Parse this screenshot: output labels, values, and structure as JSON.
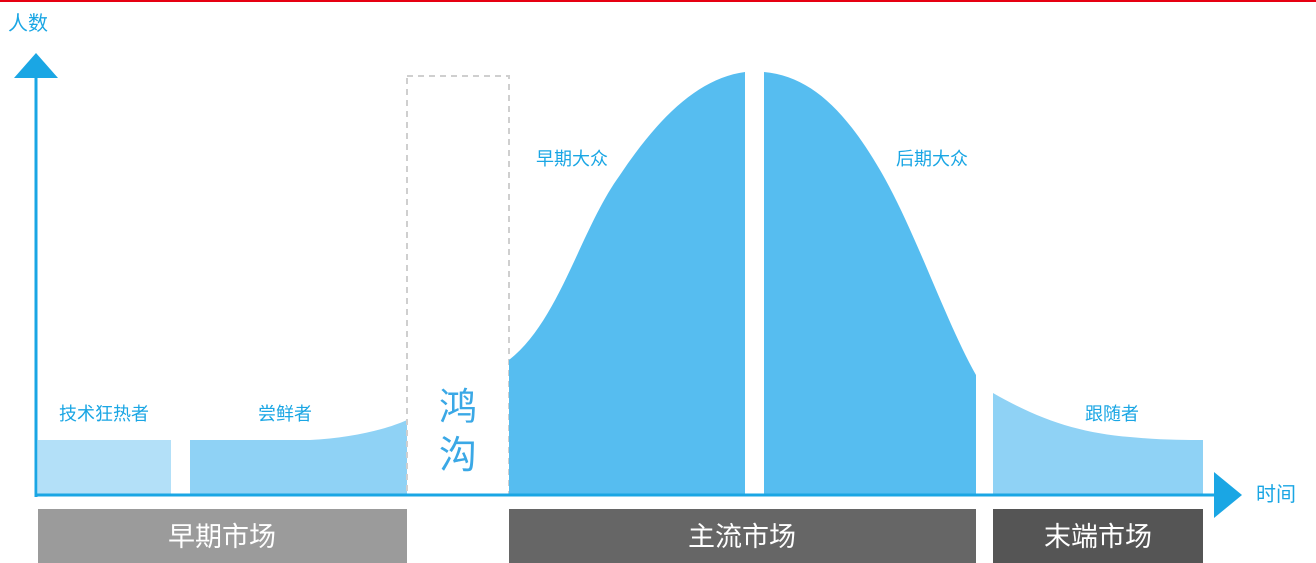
{
  "axes": {
    "y_label": "人数",
    "x_label": "时间"
  },
  "segments": {
    "innovators": "技术狂热者",
    "early_adopters": "尝鲜者",
    "chasm_line1": "鸿",
    "chasm_line2": "沟",
    "early_majority": "早期大众",
    "late_majority": "后期大众",
    "laggards": "跟随者"
  },
  "markets": {
    "early": "早期市场",
    "mainstream": "主流市场",
    "late": "末端市场"
  },
  "colors": {
    "axis": "#1aa6e4",
    "curve_main": "#56bdf0",
    "curve_light": "#8fd2f5",
    "curve_lightest": "#b3e0f8",
    "market_early": "#9b9b9b",
    "market_mainstream": "#666666",
    "market_late": "#555555",
    "top_border": "#e60012"
  }
}
